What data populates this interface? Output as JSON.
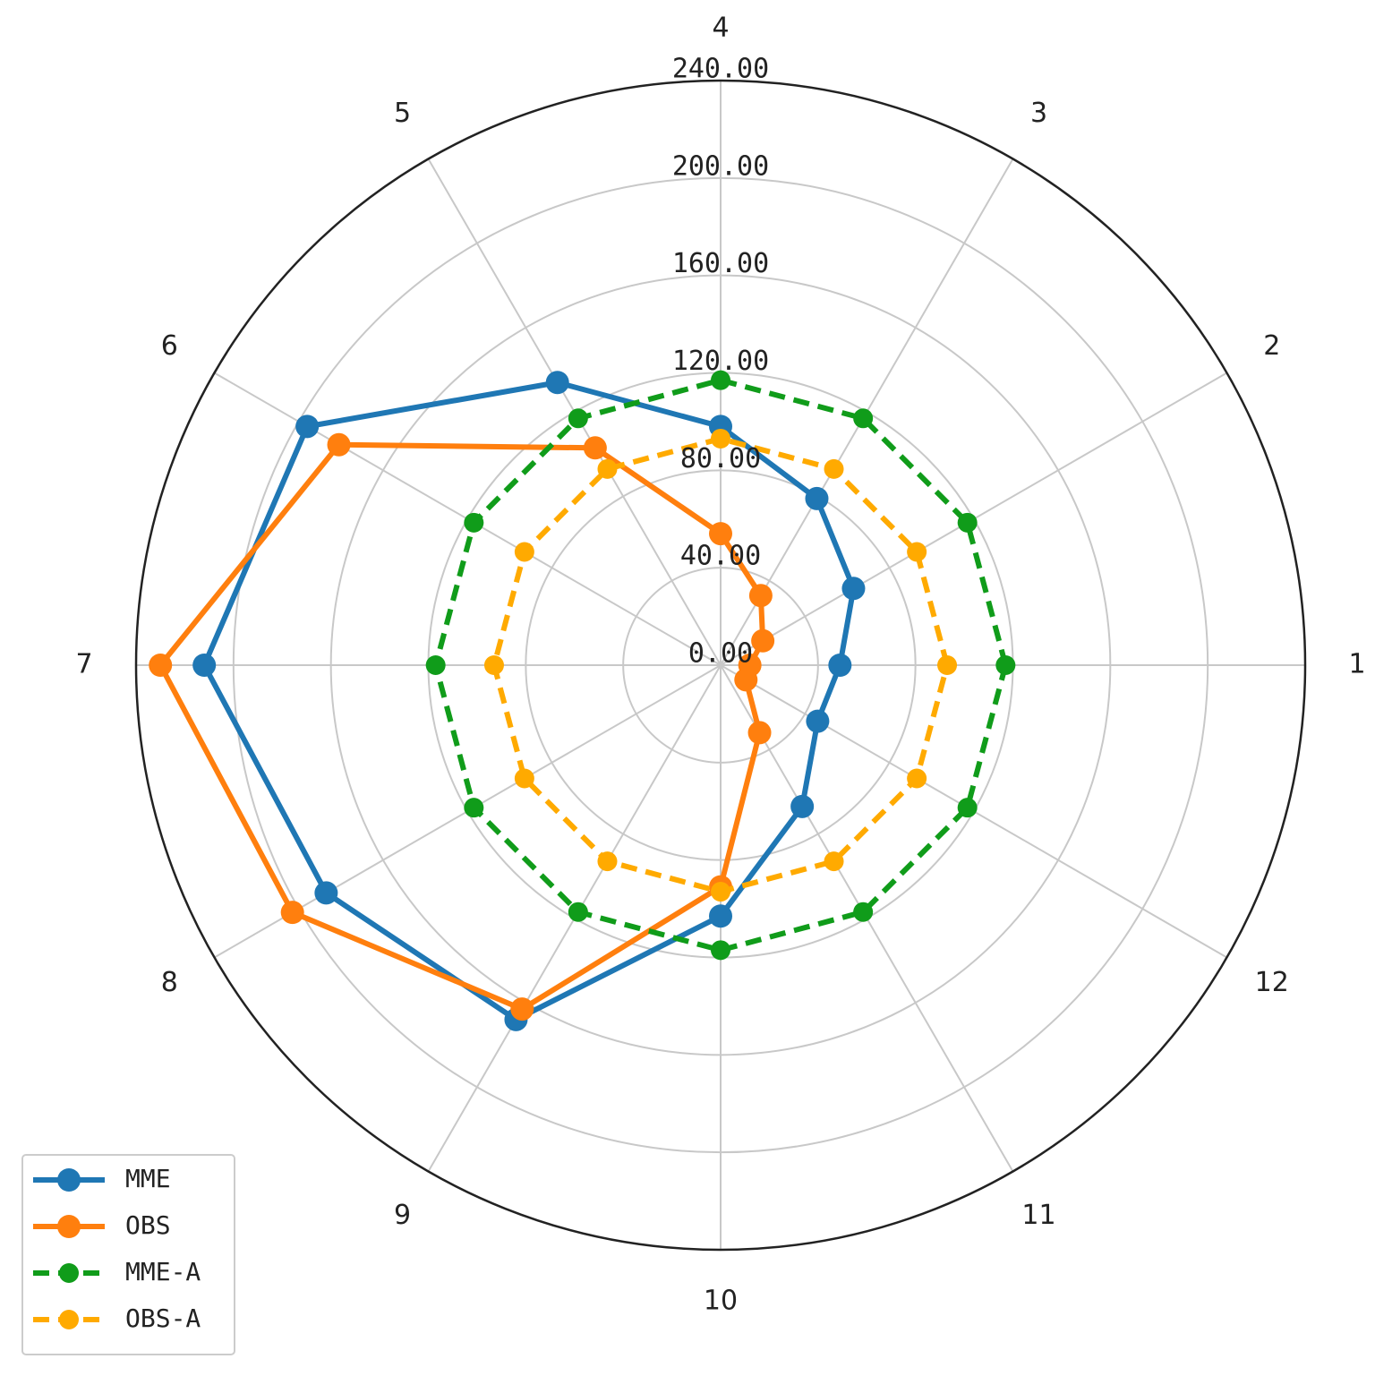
{
  "chart_data": {
    "type": "radar",
    "categories": [
      "1",
      "2",
      "3",
      "4",
      "5",
      "6",
      "7",
      "8",
      "9",
      "10",
      "11",
      "12"
    ],
    "ylim": [
      0,
      240
    ],
    "yticks": [
      {
        "value": 0,
        "label": "0.00"
      },
      {
        "value": 40,
        "label": "40.00"
      },
      {
        "value": 80,
        "label": "80.00"
      },
      {
        "value": 120,
        "label": "120.00"
      },
      {
        "value": 160,
        "label": "160.00"
      },
      {
        "value": 200,
        "label": "200.00"
      },
      {
        "value": 240,
        "label": "240.00"
      }
    ],
    "grid": true,
    "legend": "lower left",
    "series": [
      {
        "name": "MME",
        "color": "#1f77b4",
        "linestyle": "solid",
        "values": [
          49,
          63,
          79,
          98,
          134,
          196,
          212,
          187,
          168,
          103,
          67,
          46
        ]
      },
      {
        "name": "OBS",
        "color": "#ff7f0e",
        "linestyle": "solid",
        "values": [
          12,
          20,
          33,
          54,
          103,
          181,
          230,
          203,
          163,
          91,
          32,
          12
        ]
      },
      {
        "name": "MME-A",
        "color": "#109c1a",
        "linestyle": "dashed",
        "values": [
          117,
          117,
          117,
          117,
          117,
          117,
          117,
          117,
          117,
          117,
          117,
          117
        ]
      },
      {
        "name": "OBS-A",
        "color": "#ffaa00",
        "linestyle": "dashed",
        "values": [
          93,
          93,
          93,
          93,
          93,
          93,
          93,
          93,
          93,
          93,
          93,
          93
        ]
      }
    ]
  }
}
